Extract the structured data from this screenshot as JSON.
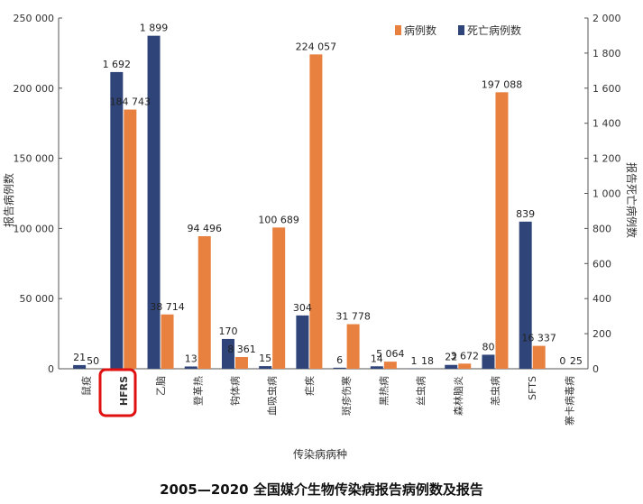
{
  "chart_data": {
    "type": "bar",
    "title": "2005—2020 全国媒介生物传染病报告病例数及报告",
    "xlabel": "传染病病种",
    "ylabel_left": "报告病例数",
    "ylabel_right": "报告死亡病例数",
    "categories": [
      "鼠疫",
      "HFRS",
      "乙脑",
      "登革热",
      "钩体病",
      "血吸虫病",
      "疟疾",
      "斑疹伤寒",
      "黑热病",
      "丝虫病",
      "森林脑炎",
      "恙虫病",
      "SFTS",
      "寨卡病毒病"
    ],
    "highlight_category": "HFRS",
    "series": [
      {
        "name": "病例数",
        "axis": "left",
        "color": "#E8803F",
        "values": [
          50,
          184743,
          38714,
          94496,
          8361,
          100689,
          224057,
          31778,
          5064,
          18,
          3672,
          197088,
          16337,
          25
        ],
        "labels": [
          "50",
          "184 743",
          "38 714",
          "94 496",
          "8 361",
          "100 689",
          "224 057",
          "31 778",
          "5 064",
          "18",
          "3 672",
          "197 088",
          "16 337",
          "25"
        ]
      },
      {
        "name": "死亡病例数",
        "axis": "right",
        "color": "#2F4579",
        "values": [
          21,
          1692,
          1899,
          13,
          170,
          15,
          304,
          6,
          14,
          1,
          22,
          80,
          839,
          0
        ],
        "labels": [
          "21",
          "1 692",
          "1 899",
          "13",
          "170",
          "15",
          "304",
          "6",
          "14",
          "1",
          "22",
          "80",
          "839",
          "0"
        ]
      }
    ],
    "ylim_left": [
      0,
      250000
    ],
    "yticks_left": [
      "0",
      "50 000",
      "100 000",
      "150 000",
      "200 000",
      "250 000"
    ],
    "ylim_right": [
      0,
      2000
    ],
    "yticks_right": [
      "0",
      "200",
      "400",
      "600",
      "800",
      "1 000",
      "1 200",
      "1 400",
      "1 600",
      "1 800",
      "2 000"
    ],
    "legend_position": "top-right",
    "grid": false
  }
}
